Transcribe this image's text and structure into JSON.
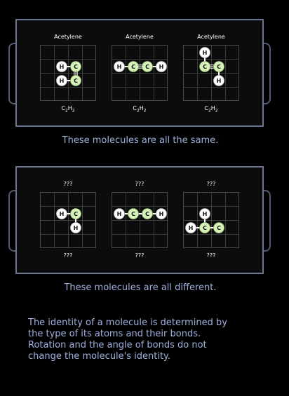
{
  "colors": {
    "panel_border": "#6c7590",
    "caption_text": "#9fb0dc",
    "carbon_fill": "#d6f2b8",
    "hydrogen_fill": "#ffffff"
  },
  "panel_same": {
    "molecules": [
      {
        "name": "Acetylene",
        "formula": "C",
        "formula_sub1": "2",
        "formula_mid": "H",
        "formula_sub2": "2",
        "atoms": [
          {
            "el": "H",
            "col": 1,
            "row": 1
          },
          {
            "el": "C",
            "col": 2,
            "row": 1
          },
          {
            "el": "H",
            "col": 1,
            "row": 2
          },
          {
            "el": "C",
            "col": 2,
            "row": 2
          }
        ],
        "bonds": [
          {
            "a": 0,
            "b": 1,
            "order": 1
          },
          {
            "a": 1,
            "b": 3,
            "order": 3
          },
          {
            "a": 3,
            "b": 2,
            "order": 1
          }
        ]
      },
      {
        "name": "Acetylene",
        "formula": "C",
        "formula_sub1": "2",
        "formula_mid": "H",
        "formula_sub2": "2",
        "atoms": [
          {
            "el": "H",
            "col": 0,
            "row": 1
          },
          {
            "el": "C",
            "col": 1,
            "row": 1
          },
          {
            "el": "C",
            "col": 2,
            "row": 1
          },
          {
            "el": "H",
            "col": 3,
            "row": 1
          }
        ],
        "bonds": [
          {
            "a": 0,
            "b": 1,
            "order": 1
          },
          {
            "a": 1,
            "b": 2,
            "order": 3
          },
          {
            "a": 2,
            "b": 3,
            "order": 1
          }
        ]
      },
      {
        "name": "Acetylene",
        "formula": "C",
        "formula_sub1": "2",
        "formula_mid": "H",
        "formula_sub2": "2",
        "atoms": [
          {
            "el": "H",
            "col": 1,
            "row": 0
          },
          {
            "el": "C",
            "col": 1,
            "row": 1
          },
          {
            "el": "C",
            "col": 2,
            "row": 1
          },
          {
            "el": "H",
            "col": 2,
            "row": 2
          }
        ],
        "bonds": [
          {
            "a": 0,
            "b": 1,
            "order": 1
          },
          {
            "a": 1,
            "b": 2,
            "order": 3
          },
          {
            "a": 2,
            "b": 3,
            "order": 1
          }
        ]
      }
    ],
    "caption": "These molecules are all the same."
  },
  "panel_different": {
    "molecules": [
      {
        "name": "???",
        "formula": "???",
        "atoms": [
          {
            "el": "H",
            "col": 1,
            "row": 1
          },
          {
            "el": "C",
            "col": 2,
            "row": 1
          },
          {
            "el": "H",
            "col": 2,
            "row": 2
          }
        ],
        "bonds": [
          {
            "a": 0,
            "b": 1,
            "order": 1
          },
          {
            "a": 1,
            "b": 2,
            "order": 1
          }
        ]
      },
      {
        "name": "???",
        "formula": "???",
        "atoms": [
          {
            "el": "H",
            "col": 0,
            "row": 1
          },
          {
            "el": "C",
            "col": 1,
            "row": 1
          },
          {
            "el": "C",
            "col": 2,
            "row": 1
          },
          {
            "el": "H",
            "col": 3,
            "row": 1
          }
        ],
        "bonds": [
          {
            "a": 0,
            "b": 1,
            "order": 1
          },
          {
            "a": 1,
            "b": 2,
            "order": 1
          },
          {
            "a": 2,
            "b": 3,
            "order": 1
          }
        ]
      },
      {
        "name": "???",
        "formula": "???",
        "atoms": [
          {
            "el": "H",
            "col": 1,
            "row": 1
          },
          {
            "el": "H",
            "col": 0,
            "row": 2
          },
          {
            "el": "C",
            "col": 1,
            "row": 2
          },
          {
            "el": "C",
            "col": 2,
            "row": 2
          }
        ],
        "bonds": [
          {
            "a": 0,
            "b": 2,
            "order": 1
          },
          {
            "a": 1,
            "b": 2,
            "order": 1
          },
          {
            "a": 2,
            "b": 3,
            "order": 1
          }
        ]
      }
    ],
    "caption": "These molecules are all different."
  },
  "info_lines": [
    "The identity of a molecule is determined by",
    "the type of its atoms and their bonds.",
    "Rotation and the angle of bonds do not",
    "change the molecule's identity."
  ]
}
